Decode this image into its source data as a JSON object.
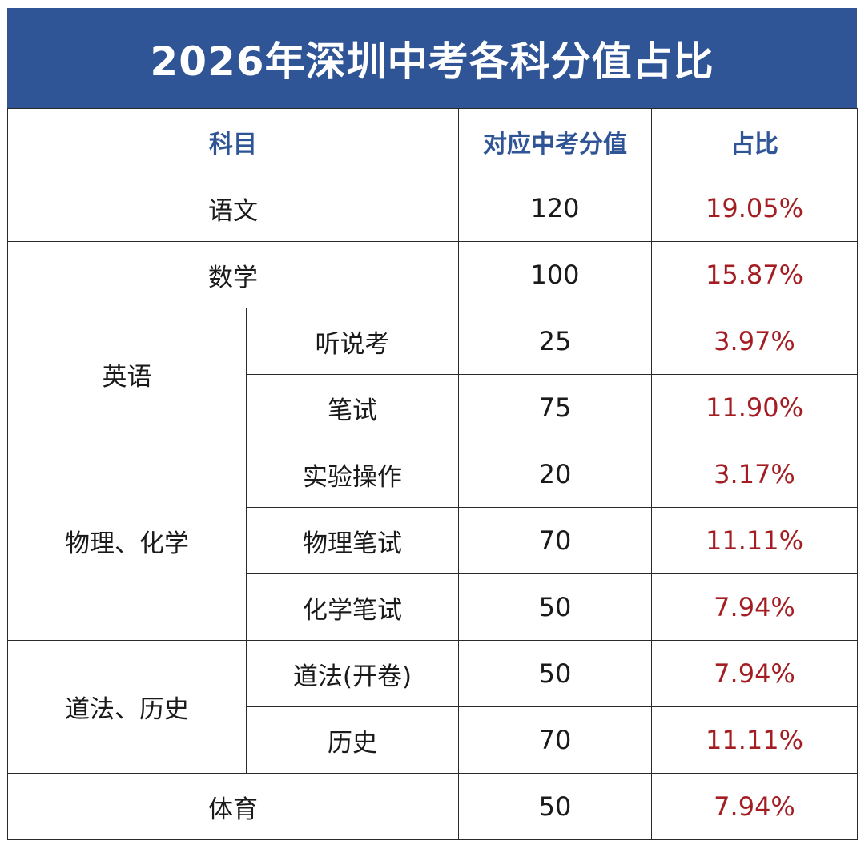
{
  "title": "2026年深圳中考各科分值占比",
  "columns": {
    "subject": "科目",
    "score": "对应中考分值",
    "ratio": "占比"
  },
  "rows": {
    "chinese": {
      "subject": "语文",
      "score": "120",
      "ratio": "19.05%"
    },
    "math": {
      "subject": "数学",
      "score": "100",
      "ratio": "15.87%"
    },
    "english": {
      "subject": "英语",
      "parts": [
        {
          "name": "听说考",
          "score": "25",
          "ratio": "3.97%"
        },
        {
          "name": "笔试",
          "score": "75",
          "ratio": "11.90%"
        }
      ]
    },
    "phys_chem": {
      "subject": "物理、化学",
      "parts": [
        {
          "name": "实验操作",
          "score": "20",
          "ratio": "3.17%"
        },
        {
          "name": "物理笔试",
          "score": "70",
          "ratio": "11.11%"
        },
        {
          "name": "化学笔试",
          "score": "50",
          "ratio": "7.94%"
        }
      ]
    },
    "law_history": {
      "subject": "道法、历史",
      "parts": [
        {
          "name": "道法(开卷)",
          "score": "50",
          "ratio": "7.94%"
        },
        {
          "name": "历史",
          "score": "70",
          "ratio": "11.11%"
        }
      ]
    },
    "pe": {
      "subject": "体育",
      "score": "50",
      "ratio": "7.94%"
    }
  },
  "colors": {
    "title_bg": "#2f5596",
    "header_text": "#2f5596",
    "ratio_text": "#a31d22",
    "border": "#2a2a2a"
  }
}
